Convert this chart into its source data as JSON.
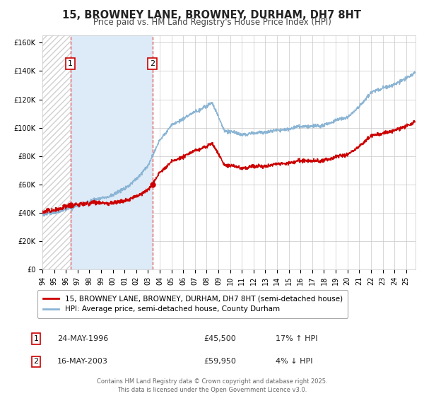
{
  "title": "15, BROWNEY LANE, BROWNEY, DURHAM, DH7 8HT",
  "subtitle": "Price paid vs. HM Land Registry's House Price Index (HPI)",
  "legend_line1": "15, BROWNEY LANE, BROWNEY, DURHAM, DH7 8HT (semi-detached house)",
  "legend_line2": "HPI: Average price, semi-detached house, County Durham",
  "annotation1_date": "24-MAY-1996",
  "annotation1_price": "£45,500",
  "annotation1_hpi": "17% ↑ HPI",
  "annotation1_year": 1996.39,
  "annotation1_value": 45500,
  "annotation2_date": "16-MAY-2003",
  "annotation2_price": "£59,950",
  "annotation2_hpi": "4% ↓ HPI",
  "annotation2_year": 2003.37,
  "annotation2_value": 59950,
  "ylim_min": 0,
  "ylim_max": 165000,
  "xlim_min": 1994.0,
  "xlim_max": 2025.8,
  "ytick_values": [
    0,
    20000,
    40000,
    60000,
    80000,
    100000,
    120000,
    140000,
    160000
  ],
  "ytick_labels": [
    "£0",
    "£20K",
    "£40K",
    "£60K",
    "£80K",
    "£100K",
    "£120K",
    "£140K",
    "£160K"
  ],
  "xtick_values": [
    1994,
    1995,
    1996,
    1997,
    1998,
    1999,
    2000,
    2001,
    2002,
    2003,
    2004,
    2005,
    2006,
    2007,
    2008,
    2009,
    2010,
    2011,
    2012,
    2013,
    2014,
    2015,
    2016,
    2017,
    2018,
    2019,
    2020,
    2021,
    2022,
    2023,
    2024,
    2025
  ],
  "grid_color": "#c8c8c8",
  "fig_bg_color": "#ffffff",
  "plot_bg_color": "#ffffff",
  "shade_region_color": "#ddeaf7",
  "hatch_color": "#d0d0d0",
  "red_line_color": "#cc0000",
  "blue_line_color": "#8ab4d4",
  "vline_color": "#dd4444",
  "footer_text": "Contains HM Land Registry data © Crown copyright and database right 2025.\nThis data is licensed under the Open Government Licence v3.0.",
  "title_fontsize": 10.5,
  "subtitle_fontsize": 8.5,
  "tick_fontsize": 7,
  "legend_fontsize": 7.5,
  "table_fontsize": 8
}
